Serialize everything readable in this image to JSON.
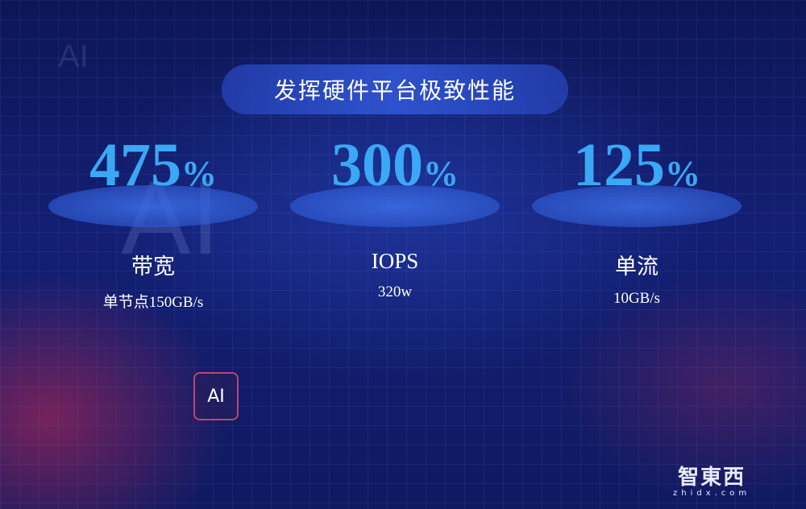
{
  "title": "发挥硬件平台极致性能",
  "metrics": [
    {
      "value": "475",
      "unit": "%",
      "label": "带宽",
      "sub": "单节点150GB/s"
    },
    {
      "value": "300",
      "unit": "%",
      "label": "IOPS",
      "sub": "320w"
    },
    {
      "value": "125",
      "unit": "%",
      "label": "单流",
      "sub": "10GB/s"
    }
  ],
  "decor": {
    "ai_text": "AI"
  },
  "watermark": {
    "cn": "智東西",
    "en": "zhidx.com"
  },
  "colors": {
    "accent": "#3aa8f5",
    "background": "#131f73"
  }
}
